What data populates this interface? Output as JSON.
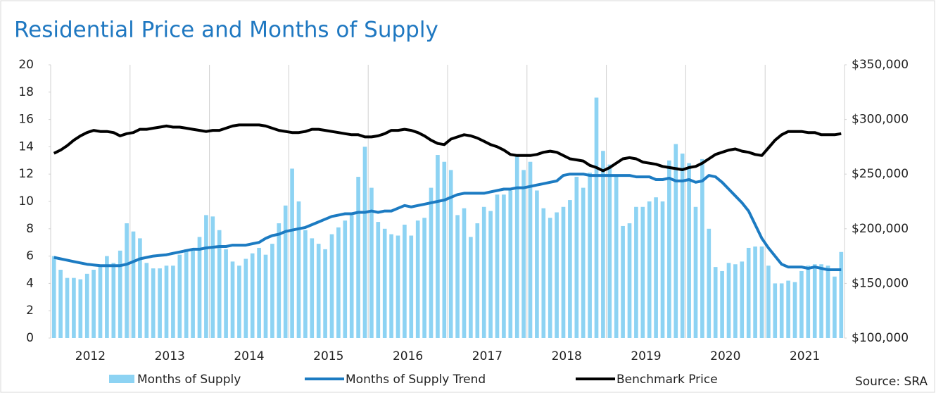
{
  "chart_data": {
    "type": "bar_line",
    "title": "Residential Price and Months of Supply",
    "source": "Source: SRA",
    "categories": [
      null,
      null,
      null,
      null,
      null,
      null,
      "2012",
      null,
      null,
      null,
      null,
      null,
      null,
      null,
      null,
      null,
      null,
      null,
      "2013",
      null,
      null,
      null,
      null,
      null,
      null,
      null,
      null,
      null,
      null,
      null,
      "2014",
      null,
      null,
      null,
      null,
      null,
      null,
      null,
      null,
      null,
      null,
      null,
      "2015",
      null,
      null,
      null,
      null,
      null,
      null,
      null,
      null,
      null,
      null,
      null,
      "2016",
      null,
      null,
      null,
      null,
      null,
      null,
      null,
      null,
      null,
      null,
      null,
      "2017",
      null,
      null,
      null,
      null,
      null,
      null,
      null,
      null,
      null,
      null,
      null,
      "2018",
      null,
      null,
      null,
      null,
      null,
      null,
      null,
      null,
      null,
      null,
      null,
      "2019",
      null,
      null,
      null,
      null,
      null,
      null,
      null,
      null,
      null,
      null,
      null,
      "2020",
      null,
      null,
      null,
      null,
      null,
      null,
      null,
      null,
      null,
      null,
      null,
      "2021",
      null,
      null,
      null,
      null,
      null
    ],
    "ylim": [
      0,
      20
    ],
    "yticks": [
      0,
      2,
      4,
      6,
      8,
      10,
      12,
      14,
      16,
      18,
      20
    ],
    "y2lim": [
      100000,
      350000
    ],
    "y2ticks": [
      {
        "value": 100000,
        "label": "$100,000"
      },
      {
        "value": 150000,
        "label": "$150,000"
      },
      {
        "value": 200000,
        "label": "$200,000"
      },
      {
        "value": 250000,
        "label": "$250,000"
      },
      {
        "value": 300000,
        "label": "$300,000"
      },
      {
        "value": 350000,
        "label": "$350,000"
      }
    ],
    "grid": true,
    "series": [
      {
        "name": "Months of Supply",
        "kind": "bar",
        "color": "#8dd3f3",
        "values": [
          6.0,
          5.0,
          4.4,
          4.4,
          4.3,
          4.7,
          5.0,
          5.2,
          6.0,
          5.5,
          6.4,
          8.4,
          7.8,
          7.3,
          5.5,
          5.1,
          5.1,
          5.3,
          5.3,
          6.1,
          6.5,
          6.4,
          7.4,
          9.0,
          8.9,
          7.9,
          6.5,
          5.6,
          5.3,
          5.8,
          6.2,
          6.6,
          6.1,
          6.9,
          8.4,
          9.7,
          12.4,
          10.0,
          7.9,
          7.3,
          6.9,
          6.5,
          7.6,
          8.1,
          8.6,
          9.0,
          11.8,
          14.0,
          11.0,
          8.5,
          8.0,
          7.6,
          7.5,
          8.3,
          7.5,
          8.6,
          8.8,
          11.0,
          13.4,
          12.9,
          12.3,
          9.0,
          9.5,
          7.4,
          8.4,
          9.6,
          9.3,
          10.5,
          10.5,
          10.8,
          13.3,
          12.3,
          12.9,
          10.8,
          9.5,
          8.8,
          9.2,
          9.6,
          10.1,
          11.8,
          11.0,
          12.1,
          17.6,
          13.7,
          12.7,
          11.9,
          8.2,
          8.4,
          9.6,
          9.6,
          10.0,
          10.3,
          10.0,
          13.0,
          14.2,
          13.5,
          12.8,
          9.6,
          13.1,
          8.0,
          5.2,
          4.9,
          5.5,
          5.4,
          5.6,
          6.6,
          6.7,
          6.7,
          5.3,
          4.0,
          4.0,
          4.2,
          4.1,
          4.9,
          5.3,
          5.4,
          5.4,
          5.3,
          4.5,
          6.3
        ]
      },
      {
        "name": "Months of Supply Trend",
        "kind": "line",
        "color": "#1c7bc2",
        "values": [
          5.9,
          5.8,
          5.7,
          5.6,
          5.5,
          5.4,
          5.35,
          5.3,
          5.3,
          5.3,
          5.3,
          5.4,
          5.6,
          5.8,
          5.9,
          6.0,
          6.05,
          6.1,
          6.2,
          6.3,
          6.4,
          6.5,
          6.5,
          6.6,
          6.65,
          6.7,
          6.7,
          6.8,
          6.8,
          6.8,
          6.9,
          7.0,
          7.3,
          7.5,
          7.6,
          7.8,
          7.9,
          8.0,
          8.1,
          8.3,
          8.5,
          8.7,
          8.9,
          9.0,
          9.1,
          9.1,
          9.2,
          9.2,
          9.3,
          9.2,
          9.3,
          9.3,
          9.5,
          9.7,
          9.6,
          9.7,
          9.8,
          9.9,
          10.0,
          10.1,
          10.3,
          10.5,
          10.6,
          10.6,
          10.6,
          10.6,
          10.7,
          10.8,
          10.9,
          10.9,
          11.0,
          11.0,
          11.1,
          11.2,
          11.3,
          11.4,
          11.5,
          11.9,
          12.0,
          12.0,
          12.0,
          11.9,
          11.9,
          11.9,
          11.9,
          11.9,
          11.9,
          11.9,
          11.8,
          11.8,
          11.8,
          11.6,
          11.6,
          11.7,
          11.5,
          11.5,
          11.6,
          11.4,
          11.5,
          11.9,
          11.8,
          11.4,
          10.9,
          10.4,
          9.9,
          9.3,
          8.3,
          7.3,
          6.6,
          6.0,
          5.4,
          5.2,
          5.2,
          5.2,
          5.1,
          5.2,
          5.1,
          5.0,
          5.0,
          5.0
        ]
      },
      {
        "name": "Benchmark Price",
        "kind": "line",
        "axis": "y2",
        "color": "#000000",
        "values": [
          269000,
          272000,
          276000,
          281000,
          285000,
          288000,
          290000,
          289000,
          289000,
          288000,
          285000,
          287000,
          288000,
          291000,
          291000,
          292000,
          293000,
          294000,
          293000,
          293000,
          292000,
          291000,
          290000,
          289000,
          290000,
          290000,
          292000,
          294000,
          295000,
          295000,
          295000,
          295000,
          294000,
          292000,
          290000,
          289000,
          288000,
          288000,
          289000,
          291000,
          291000,
          290000,
          289000,
          288000,
          287000,
          286000,
          286000,
          284000,
          284000,
          285000,
          287000,
          290000,
          290000,
          291000,
          290000,
          288000,
          285000,
          281000,
          278000,
          277000,
          282000,
          284000,
          286000,
          285000,
          283000,
          280000,
          277000,
          275000,
          272000,
          268000,
          267000,
          267000,
          267000,
          268000,
          270000,
          271000,
          270000,
          267000,
          264000,
          263000,
          262000,
          258000,
          256000,
          253000,
          256000,
          260000,
          264000,
          265000,
          264000,
          261000,
          260000,
          259000,
          257000,
          256000,
          255000,
          254000,
          256000,
          257000,
          260000,
          264000,
          268000,
          270000,
          272000,
          273000,
          271000,
          270000,
          268000,
          267000,
          274000,
          281000,
          286000,
          289000,
          289000,
          289000,
          288000,
          288000,
          286000,
          286000,
          286000,
          287000
        ]
      }
    ]
  }
}
